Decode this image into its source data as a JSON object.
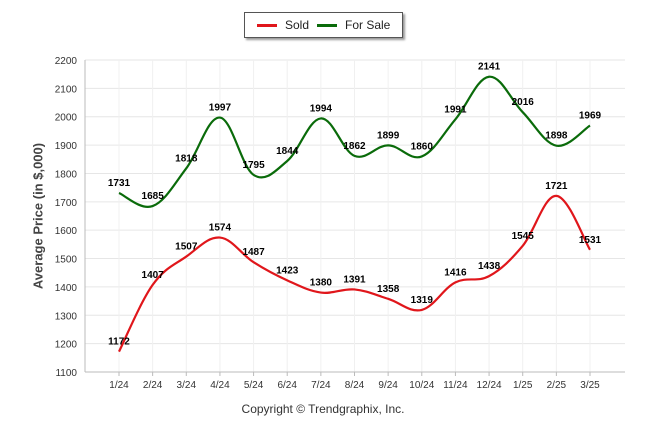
{
  "chart_data": {
    "type": "line",
    "categories": [
      "1/24",
      "2/24",
      "3/24",
      "4/24",
      "5/24",
      "6/24",
      "7/24",
      "8/24",
      "9/24",
      "10/24",
      "11/24",
      "12/24",
      "1/25",
      "2/25",
      "3/25"
    ],
    "series": [
      {
        "name": "Sold",
        "color": "#e0161b",
        "values": [
          1172,
          1407,
          1507,
          1574,
          1487,
          1423,
          1380,
          1391,
          1358,
          1319,
          1416,
          1438,
          1545,
          1721,
          1531
        ]
      },
      {
        "name": "For Sale",
        "color": "#0a6b0a",
        "values": [
          1731,
          1685,
          1818,
          1997,
          1795,
          1844,
          1994,
          1862,
          1899,
          1860,
          1991,
          2141,
          2016,
          1898,
          1969
        ]
      }
    ],
    "ylabel": "Average Price (in $,000)",
    "xlabel": "",
    "ylim": [
      1100,
      2200
    ],
    "yticks": [
      1100,
      1200,
      1300,
      1400,
      1500,
      1600,
      1700,
      1800,
      1900,
      2000,
      2100,
      2200
    ],
    "grid": true,
    "legend_position": "top-center"
  },
  "copyright": "Copyright © Trendgraphix, Inc."
}
